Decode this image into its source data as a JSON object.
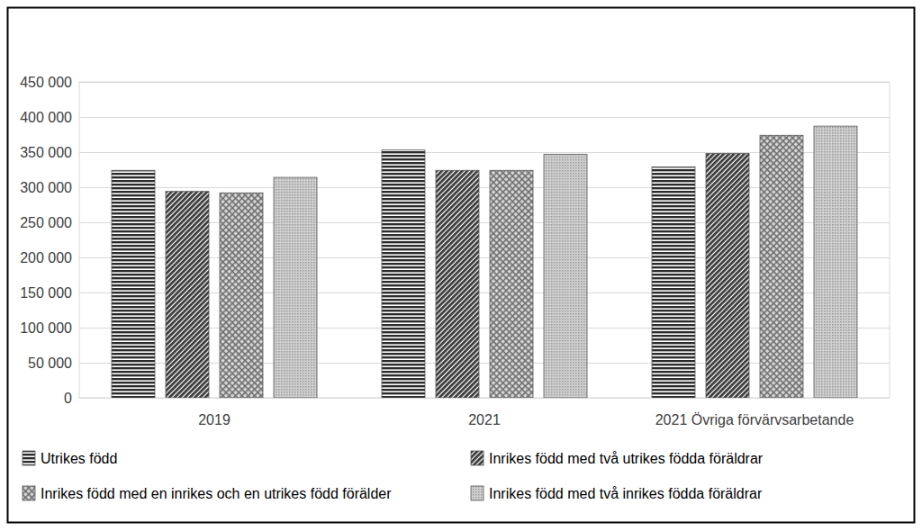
{
  "chart_data": {
    "type": "bar",
    "categories": [
      "2019",
      "2021",
      "2021 Övriga förvärvsarbetande"
    ],
    "series": [
      {
        "name": "Utrikes född",
        "color": "#2b2b2b",
        "values": [
          324000,
          353000,
          329000
        ]
      },
      {
        "name": "Inrikes född med två utrikes födda föräldrar",
        "color": "#3a3a3a",
        "values": [
          294000,
          324000,
          348000
        ]
      },
      {
        "name": "Inrikes född med en inrikes och en utrikes född förälder",
        "color": "#6e6e6e",
        "values": [
          292000,
          324000,
          374000
        ]
      },
      {
        "name": "Inrikes född med två inrikes födda föräldrar",
        "color": "#9a9a9a",
        "values": [
          314000,
          347000,
          387000
        ]
      }
    ],
    "ylim": [
      0,
      450000
    ],
    "yticks": [
      0,
      {
        "value": 50000,
        "label": "50 000"
      },
      {
        "value": 100000,
        "label": "100 000"
      },
      {
        "value": 150000,
        "label": "150 000"
      },
      {
        "value": 200000,
        "label": "200 000"
      },
      {
        "value": 250000,
        "label": "250 000"
      },
      {
        "value": 300000,
        "label": "300 000"
      },
      {
        "value": 350000,
        "label": "350 000"
      },
      {
        "value": 400000,
        "label": "400 000"
      },
      {
        "value": 450000,
        "label": "450 000"
      }
    ],
    "grid": true,
    "legend": "bottom"
  }
}
